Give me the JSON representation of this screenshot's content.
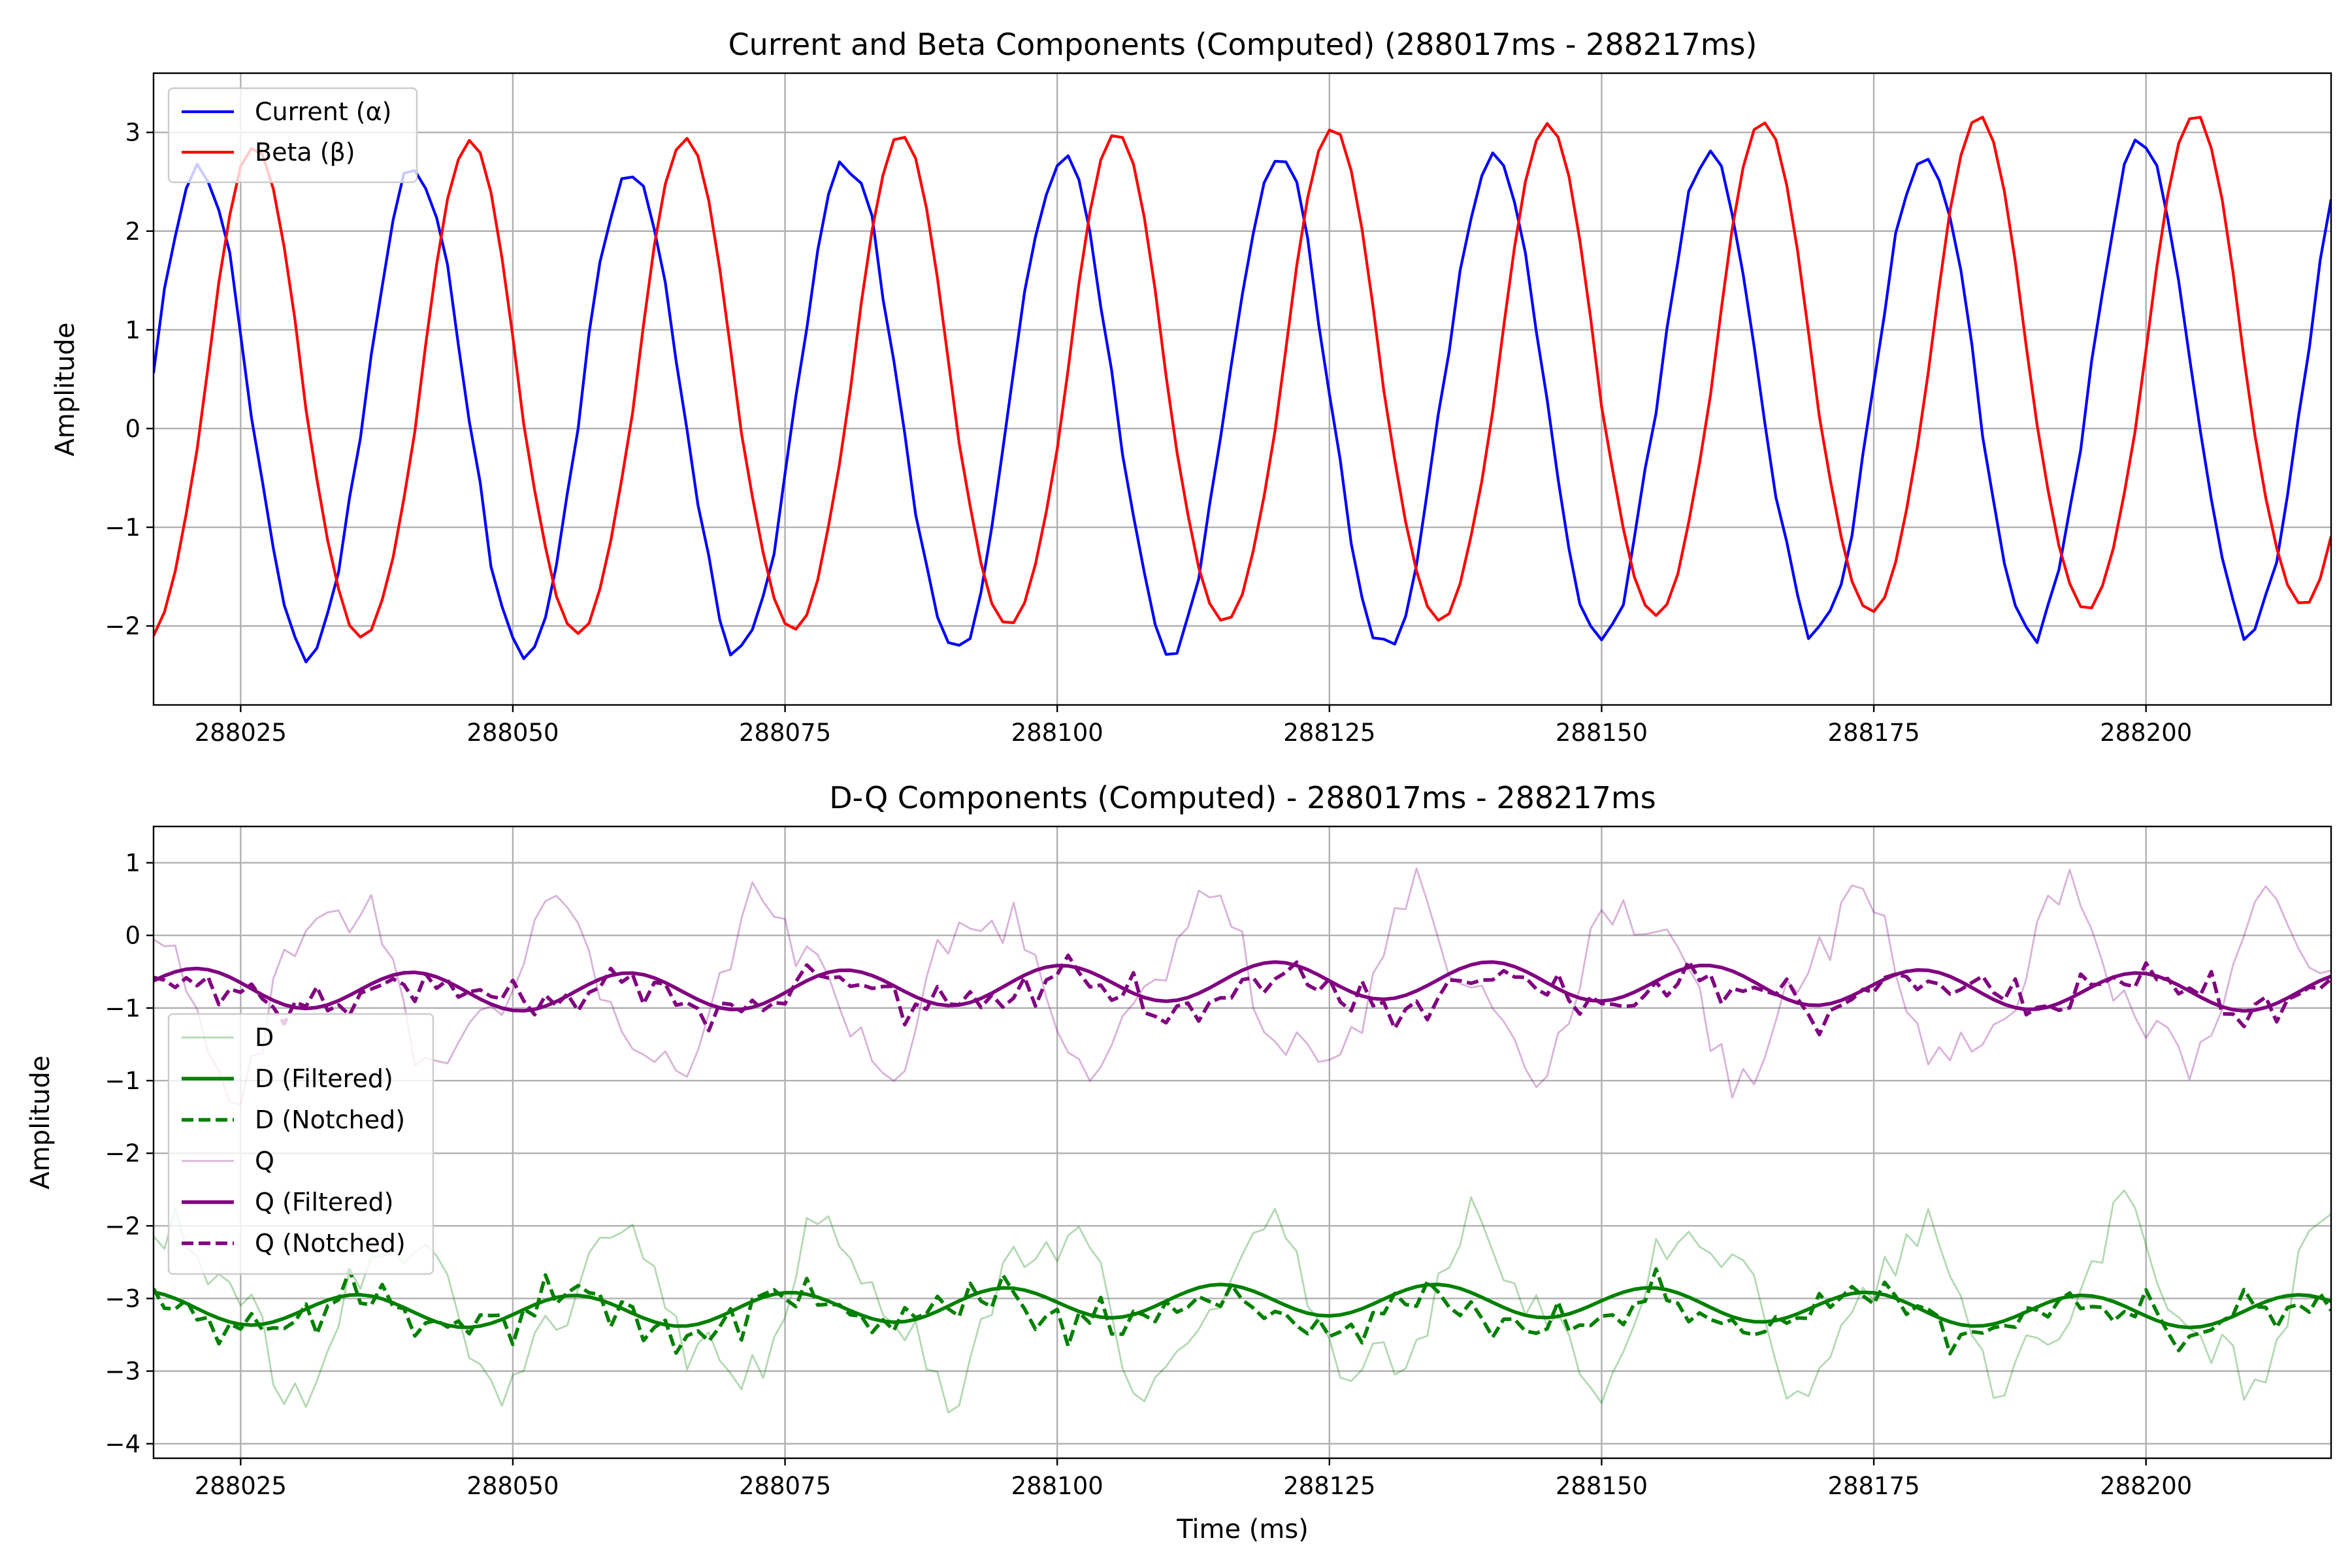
{
  "chart_data": [
    {
      "type": "line",
      "title": "Current and Beta Components (Computed) (288017ms - 288217ms)",
      "xlabel": "",
      "ylabel": "Amplitude",
      "xlim": [
        288017,
        288217
      ],
      "ylim": [
        -2.8,
        3.6
      ],
      "xticks": [
        288025,
        288050,
        288075,
        288100,
        288125,
        288150,
        288175,
        288200
      ],
      "yticks": [
        -2,
        -1,
        0,
        1,
        2,
        3
      ],
      "grid": true,
      "legend_position": "upper left",
      "series": [
        {
          "name": "Current (α)",
          "color": "#0000ff",
          "style": "solid",
          "generator": {
            "kind": "sine",
            "period": 19.8,
            "phase_x": 288021.3,
            "amp_max": 2.6,
            "amp_min": 2.35,
            "trend": 0.0015,
            "noise": 0.12
          }
        },
        {
          "name": "Beta (β)",
          "color": "#ff0000",
          "style": "solid",
          "generator": {
            "kind": "sine",
            "period": 19.8,
            "phase_x": 288026.25,
            "amp_max": 2.85,
            "amp_min": 2.15,
            "trend": 0.0018,
            "noise": 0.02
          }
        }
      ]
    },
    {
      "type": "line",
      "title": "D-Q Components (Computed) - 288017ms - 288217ms",
      "xlabel": "Time (ms)",
      "ylabel": "Amplitude",
      "xlim": [
        288017,
        288217
      ],
      "ylim": [
        -3.6,
        0.75
      ],
      "xticks": [
        288025,
        288050,
        288075,
        288100,
        288125,
        288150,
        288175,
        288200
      ],
      "yticks": [
        -3.5,
        -3.0,
        -2.5,
        -2.0,
        -1.5,
        -1.0,
        -0.5,
        0.0,
        0.5
      ],
      "grid": true,
      "legend_position": "center left",
      "series": [
        {
          "name": "D",
          "color": "#008000",
          "style": "solid",
          "opacity": 0.3,
          "width": 2.8,
          "generator": {
            "kind": "raw",
            "base": -2.55,
            "period": 19.8,
            "amp": 0.5,
            "phase": 0.6,
            "noise": 0.15
          }
        },
        {
          "name": "D (Filtered)",
          "color": "#008000",
          "style": "solid",
          "opacity": 1,
          "width": 5.5,
          "generator": {
            "kind": "smooth",
            "base": -2.55,
            "period": 19.8,
            "amp": 0.11,
            "phase": 1.9,
            "noise": 0
          }
        },
        {
          "name": "D (Notched)",
          "color": "#008000",
          "style": "dashed",
          "opacity": 1,
          "width": 5.5,
          "generator": {
            "kind": "notched",
            "base": -2.6,
            "period": 19.8,
            "amp": 0.1,
            "phase": 1.9,
            "noise": 0.13
          }
        },
        {
          "name": "Q",
          "color": "#800080",
          "style": "solid",
          "opacity": 0.3,
          "width": 2.8,
          "generator": {
            "kind": "raw",
            "base": -0.35,
            "period": 19.8,
            "amp": 0.55,
            "phase": 2.4,
            "noise": 0.15
          }
        },
        {
          "name": "Q (Filtered)",
          "color": "#800080",
          "style": "solid",
          "opacity": 1,
          "width": 5.5,
          "generator": {
            "kind": "smooth",
            "base": -0.35,
            "period": 19.8,
            "amp": 0.13,
            "phase": 0.3,
            "noise": 0
          }
        },
        {
          "name": "Q (Notched)",
          "color": "#800080",
          "style": "dashed",
          "opacity": 1,
          "width": 5.5,
          "generator": {
            "kind": "notched",
            "base": -0.4,
            "period": 19.8,
            "amp": 0.1,
            "phase": 0.3,
            "noise": 0.13
          }
        }
      ]
    }
  ]
}
